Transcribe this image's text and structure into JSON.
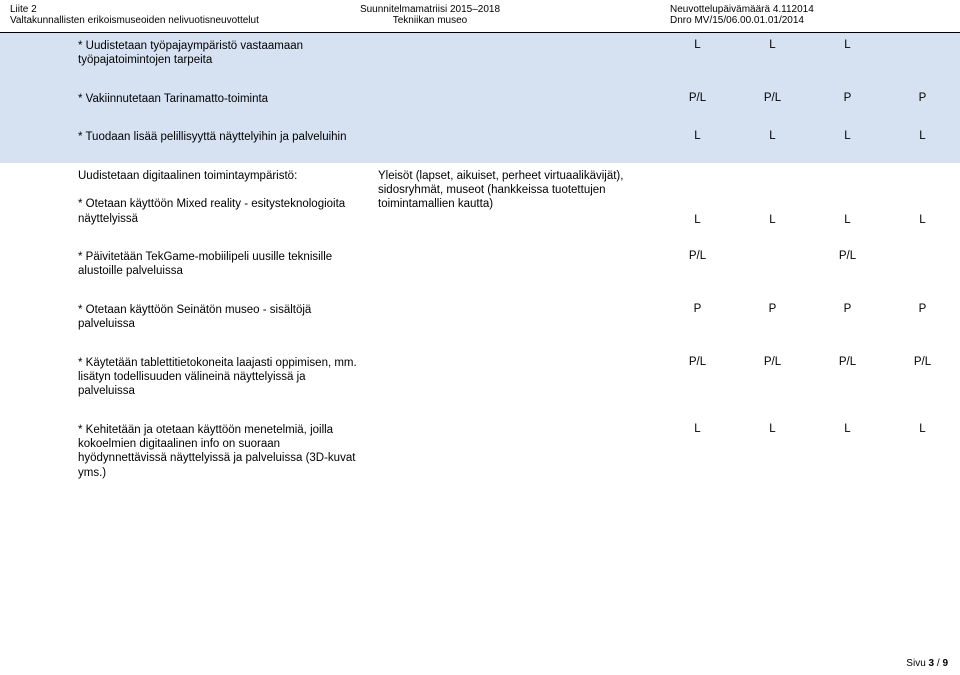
{
  "header": {
    "left_line1": "Liite 2",
    "left_line2": "Valtakunnallisten erikoismuseoiden nelivuotisneuvottelut",
    "center_line1": "Suunnitelmamatriisi 2015–2018",
    "center_line2": "Tekniikan museo",
    "right_line1": "Neuvottelupäivämäärä 4.112014",
    "right_line2": "Dnro MV/15/06.00.01.01/2014"
  },
  "rows": [
    {
      "desc": "* Uudistetaan työpajaympäristö vastaamaan työpajatoimintojen tarpeita",
      "mid": "",
      "v1": "L",
      "v2": "L",
      "v3": "L",
      "v4": ""
    },
    {
      "desc": "* Vakiinnutetaan Tarinamatto-toiminta",
      "mid": "",
      "v1": "P/L",
      "v2": "P/L",
      "v3": "P",
      "v4": "P"
    },
    {
      "desc": "* Tuodaan lisää pelillisyyttä näyttelyihin ja palveluihin",
      "mid": "",
      "v1": "L",
      "v2": "L",
      "v3": "L",
      "v4": "L"
    },
    {
      "desc": "Uudistetaan digitaalinen toimintaympäristö:\n\n* Otetaan käyttöön Mixed reality - esitysteknologioita näyttelyissä",
      "mid": "Yleisöt (lapset, aikuiset, perheet virtuaalikävijät), sidosryhmät, museot (hankkeissa tuotettujen toimintamallien kautta)",
      "v1": "L",
      "v2": "L",
      "v3": "L",
      "v4": "L",
      "white": true,
      "valign": "bottom"
    },
    {
      "desc": "* Päivitetään TekGame-mobiilipeli uusille teknisille alustoille palveluissa",
      "mid": "",
      "v1": "P/L",
      "v2": "",
      "v3": "P/L",
      "v4": "",
      "white": true
    },
    {
      "desc": "* Otetaan käyttöön Seinätön museo - sisältöjä palveluissa",
      "mid": "",
      "v1": "P",
      "v2": "P",
      "v3": "P",
      "v4": "P",
      "white": true
    },
    {
      "desc": "* Käytetään tablettitietokoneita laajasti oppimisen, mm. lisätyn todellisuuden välineinä näyttelyissä ja palveluissa",
      "mid": "",
      "v1": "P/L",
      "v2": "P/L",
      "v3": "P/L",
      "v4": "P/L",
      "white": true
    },
    {
      "desc": "* Kehitetään ja otetaan käyttöön menetelmiä, joilla kokoelmien digitaalinen info on suoraan hyödynnettävissä näyttelyissä ja palveluissa (3D-kuvat yms.)",
      "mid": "",
      "v1": "L",
      "v2": "L",
      "v3": "L",
      "v4": "L",
      "white": true
    }
  ],
  "footer": {
    "page_label": "Sivu",
    "page_current": "3",
    "page_sep": "/",
    "page_total": "9"
  }
}
